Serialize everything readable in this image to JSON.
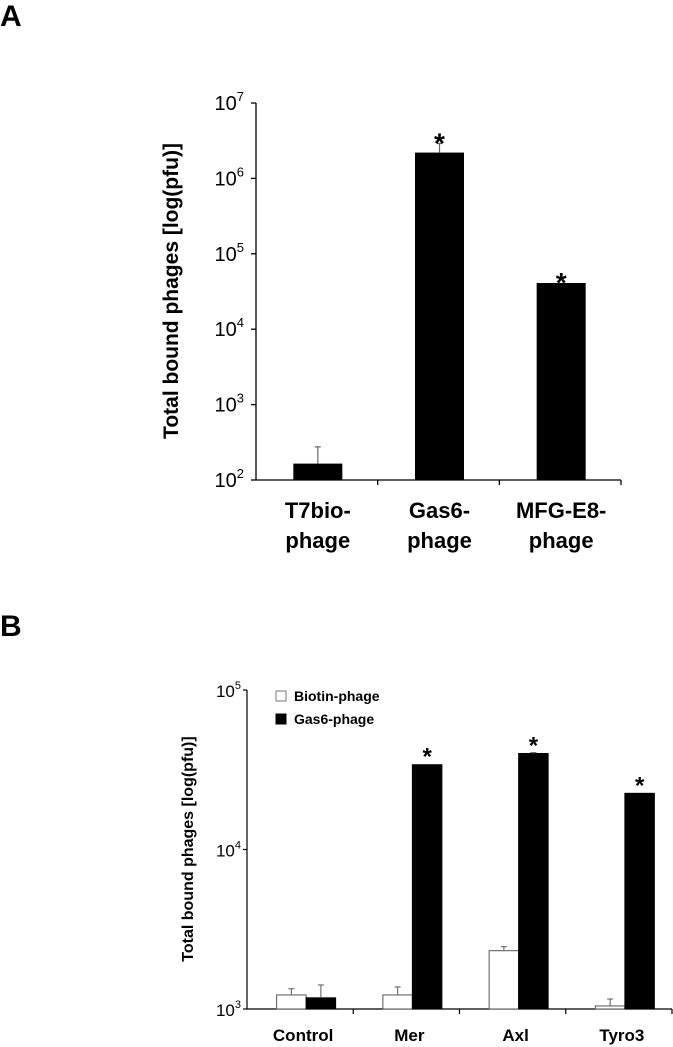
{
  "panels": {
    "a": {
      "label": "A"
    },
    "b": {
      "label": "B"
    }
  },
  "chart_data": [
    {
      "id": "A",
      "type": "bar",
      "title": "",
      "panel_label": "A",
      "ylabel": "Total bound phages [log(pfu)]",
      "xlabel": "",
      "yscale": "log",
      "ylim": [
        100,
        10000000
      ],
      "yticks": [
        {
          "base": "10",
          "exp": "2",
          "value": 100
        },
        {
          "base": "10",
          "exp": "3",
          "value": 1000
        },
        {
          "base": "10",
          "exp": "4",
          "value": 10000
        },
        {
          "base": "10",
          "exp": "5",
          "value": 100000
        },
        {
          "base": "10",
          "exp": "6",
          "value": 1000000
        },
        {
          "base": "10",
          "exp": "7",
          "value": 10000000
        }
      ],
      "categories": [
        {
          "line1": "T7bio-",
          "line2": "phage"
        },
        {
          "line1": "Gas6-",
          "line2": "phage"
        },
        {
          "line1": "MFG-E8-",
          "line2": "phage"
        }
      ],
      "series": [
        {
          "name": "Total bound phages",
          "color": "#000000",
          "values": [
            165,
            2200000,
            41000
          ],
          "error_upper": [
            275,
            2900000,
            41000
          ],
          "significance": [
            "",
            "*",
            "*"
          ]
        }
      ],
      "grid": false,
      "legend": null
    },
    {
      "id": "B",
      "type": "bar",
      "title": "",
      "panel_label": "B",
      "ylabel": "Total bound phages [log(pfu)]",
      "xlabel": "",
      "yscale": "log",
      "ylim": [
        1000,
        100000
      ],
      "yticks": [
        {
          "base": "10",
          "exp": "3",
          "value": 1000
        },
        {
          "base": "10",
          "exp": "4",
          "value": 10000
        },
        {
          "base": "10",
          "exp": "5",
          "value": 100000
        }
      ],
      "categories": [
        "Control",
        "Mer",
        "Axl",
        "Tyro3"
      ],
      "series": [
        {
          "name": "Biotin-phage",
          "color": "#ffffff",
          "edge": "#555555",
          "values": [
            1225,
            1225,
            2320,
            1045
          ],
          "error_upper": [
            1340,
            1375,
            2460,
            1155
          ],
          "significance": [
            "",
            "",
            "",
            ""
          ]
        },
        {
          "name": "Gas6-phage",
          "color": "#000000",
          "edge": "#000000",
          "values": [
            1175,
            34000,
            40000,
            22500
          ],
          "error_upper": [
            1415,
            34000,
            40500,
            22500
          ],
          "significance": [
            "",
            "*",
            "*",
            "*"
          ]
        }
      ],
      "grid": false,
      "legend": {
        "position": "upper-left",
        "entries": [
          "Biotin-phage",
          "Gas6-phage"
        ]
      }
    }
  ]
}
